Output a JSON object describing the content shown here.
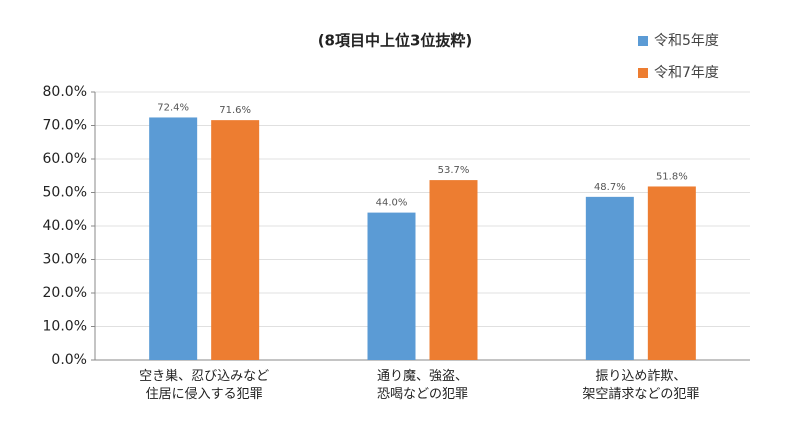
{
  "chart_data": {
    "type": "bar",
    "title": "(8項目中上位3位抜粋)",
    "categories": [
      "空き巣、忍び込みなど\n住居に侵入する犯罪",
      "通り魔、強盗、\n恐喝などの犯罪",
      "振り込め詐欺、\n架空請求などの犯罪"
    ],
    "series": [
      {
        "name": "令和5年度",
        "color": "#5b9bd5",
        "values": [
          72.4,
          44.0,
          48.7
        ],
        "value_labels": [
          "72.4%",
          "44.0%",
          "48.7%"
        ]
      },
      {
        "name": "令和7年度",
        "color": "#ed7d31",
        "values": [
          71.6,
          53.7,
          51.8
        ],
        "value_labels": [
          "71.6%",
          "53.7%",
          "51.8%"
        ]
      }
    ],
    "ylim": [
      0,
      80
    ],
    "yticks": [
      {
        "value": 0,
        "label": "0.0%"
      },
      {
        "value": 10,
        "label": "10.0%"
      },
      {
        "value": 20,
        "label": "20.0%"
      },
      {
        "value": 30,
        "label": "30.0%"
      },
      {
        "value": 40,
        "label": "40.0%"
      },
      {
        "value": 50,
        "label": "50.0%"
      },
      {
        "value": 60,
        "label": "60.0%"
      },
      {
        "value": 70,
        "label": "70.0%"
      },
      {
        "value": 80,
        "label": "80.0%"
      }
    ],
    "grid": true,
    "legend": "top-right"
  }
}
